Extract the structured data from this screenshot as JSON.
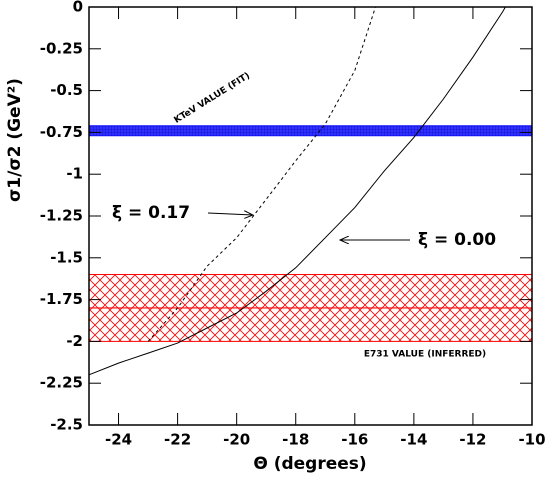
{
  "chart_data": {
    "type": "line",
    "ylabel": "σ1/σ2 (GeV²)",
    "xlabel": "Θ (degrees)",
    "xlim": [
      -25,
      -10
    ],
    "ylim": [
      -2.5,
      0
    ],
    "xticks": [
      -24,
      -22,
      -20,
      -18,
      -16,
      -14,
      -12,
      -10
    ],
    "yticks": [
      0,
      -0.25,
      -0.5,
      -0.75,
      -1,
      -1.25,
      -1.5,
      -1.75,
      -2,
      -2.25,
      -2.5
    ],
    "series": [
      {
        "color": "#000000",
        "dashed": false,
        "x": [
          -25,
          -24,
          -23,
          -22,
          -21,
          -20,
          -19,
          -18,
          -17,
          -16,
          -15,
          -14,
          -13,
          -12,
          -11,
          -10.9
        ],
        "values": [
          -2.2,
          -2.13,
          -2.07,
          -2.01,
          -1.92,
          -1.83,
          -1.7,
          -1.56,
          -1.38,
          -1.2,
          -0.98,
          -0.78,
          -0.55,
          -0.3,
          -0.03,
          0
        ]
      },
      {
        "color": "#000000",
        "dashed": true,
        "x": [
          -23,
          -22,
          -21,
          -20,
          -19,
          -18,
          -17,
          -16,
          -15.3
        ],
        "values": [
          -2.0,
          -1.8,
          -1.55,
          -1.38,
          -1.15,
          -0.92,
          -0.7,
          -0.38,
          0
        ]
      }
    ],
    "bands": [
      {
        "ymin": -0.77,
        "ymax": -0.71,
        "color": "#1a1aff",
        "pattern": "grid"
      },
      {
        "ymin": -2.0,
        "ymax": -1.6,
        "center": -1.8,
        "color": "#ff0000",
        "pattern": "cross"
      }
    ],
    "annotations": [
      "KTeV VALUE (FIT)",
      "E731 VALUE (INFERRED)",
      "ξ = 0.17",
      "ξ = 0.00"
    ]
  }
}
